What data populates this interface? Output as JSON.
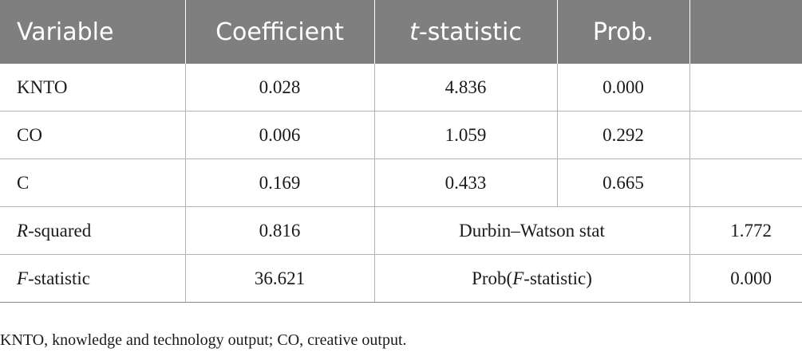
{
  "header": {
    "variable": "Variable",
    "coefficient": "Coefficient",
    "t_italic": "t",
    "t_rest": "-statistic",
    "prob": "Prob."
  },
  "rows": [
    {
      "variable": "KNTO",
      "coefficient": "0.028",
      "t_statistic": "4.836",
      "prob": "0.000"
    },
    {
      "variable": "CO",
      "coefficient": "0.006",
      "t_statistic": "1.059",
      "prob": "0.292"
    },
    {
      "variable": "C",
      "coefficient": "0.169",
      "t_statistic": "0.433",
      "prob": "0.665"
    }
  ],
  "stats": {
    "r_squared": {
      "label_italic": "R",
      "label_rest": "-squared",
      "value": "0.816"
    },
    "durbin_watson": {
      "label": "Durbin–Watson stat",
      "value": "1.772"
    },
    "f_statistic": {
      "label_italic": "F",
      "label_rest": "-statistic",
      "value": "36.621"
    },
    "prob_f": {
      "label_prefix": "Prob(",
      "label_italic": "F",
      "label_suffix": "-statistic)",
      "value": "0.000"
    }
  },
  "footnote": "KNTO, knowledge and technology output; CO, creative output.",
  "colors": {
    "header_bg": "#7f7f7f",
    "header_text": "#ffffff",
    "body_text": "#1a1a1a",
    "rule": "#b3b3b3"
  }
}
